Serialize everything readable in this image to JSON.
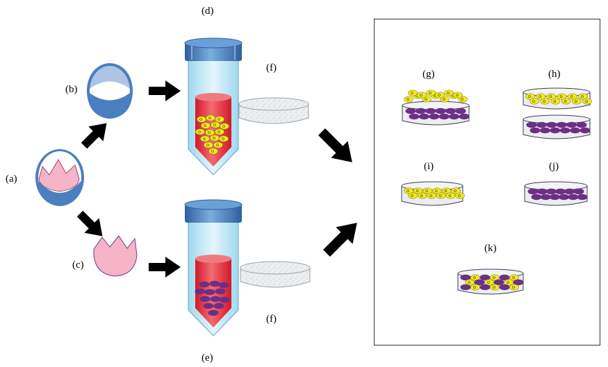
{
  "labels": {
    "a": "(a)",
    "b": "(b)",
    "c": "(c)",
    "d": "(d)",
    "e": "(e)",
    "f_top": "(f)",
    "f_bottom": "(f)",
    "g": "(g)",
    "h": "(h)",
    "i": "(i)",
    "j": "(j)",
    "k": "(k)"
  },
  "colors": {
    "tube_blue": "#4a7fc0",
    "tube_fluid": "#e3283b",
    "tube_glass": "#bfe8f5",
    "yellow_cell": "#f3ea1c",
    "purple_cell": "#6b2f86",
    "pink_tissue": "#f5b4c8",
    "disc_fill": "#ecedef",
    "arrow": "#000000"
  },
  "icons": [
    "eye-globe-icon",
    "corneal-ring-icon",
    "corneal-button-icon",
    "centrifuge-tube-icon",
    "scaffold-disc-icon",
    "culture-dish-icon"
  ]
}
